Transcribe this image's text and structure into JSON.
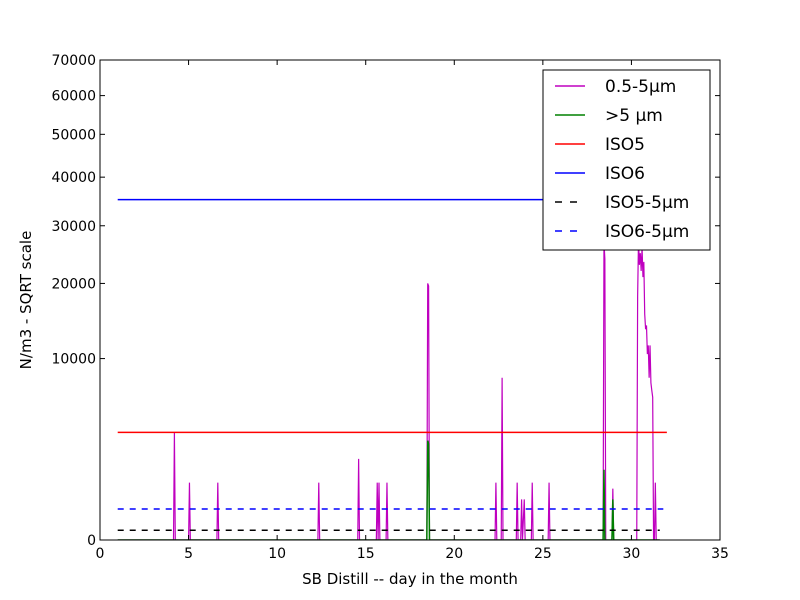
{
  "chart_data": {
    "type": "line",
    "title": "",
    "xlabel": "SB Distill -- day in the month",
    "ylabel": "N/m3 - SQRT scale",
    "xlim": [
      0,
      35
    ],
    "ylim": [
      0,
      70000
    ],
    "y_scale": "sqrt",
    "grid": false,
    "legend_position": "top-right",
    "x_ticks": [
      0,
      5,
      10,
      15,
      20,
      25,
      30,
      35
    ],
    "y_ticks": [
      0,
      10000,
      20000,
      30000,
      40000,
      50000,
      60000,
      70000
    ],
    "series": [
      {
        "name": "0.5-5µm",
        "color": "#bf00bf",
        "style": "solid",
        "points": [
          [
            1.0,
            0
          ],
          [
            4.15,
            0
          ],
          [
            4.2,
            3500
          ],
          [
            4.25,
            0
          ],
          [
            5.0,
            0
          ],
          [
            5.05,
            1000
          ],
          [
            5.1,
            0
          ],
          [
            6.6,
            0
          ],
          [
            6.65,
            1000
          ],
          [
            6.7,
            0
          ],
          [
            12.3,
            0
          ],
          [
            12.35,
            1000
          ],
          [
            12.4,
            0
          ],
          [
            14.55,
            0
          ],
          [
            14.6,
            2000
          ],
          [
            14.65,
            0
          ],
          [
            15.6,
            0
          ],
          [
            15.65,
            1000
          ],
          [
            15.7,
            0
          ],
          [
            15.75,
            1000
          ],
          [
            15.8,
            0
          ],
          [
            16.15,
            0
          ],
          [
            16.2,
            1000
          ],
          [
            16.25,
            0
          ],
          [
            18.45,
            0
          ],
          [
            18.5,
            20000
          ],
          [
            18.55,
            19600
          ],
          [
            18.6,
            0
          ],
          [
            22.3,
            0
          ],
          [
            22.35,
            1000
          ],
          [
            22.4,
            0
          ],
          [
            22.65,
            0
          ],
          [
            22.7,
            8000
          ],
          [
            22.75,
            0
          ],
          [
            23.5,
            0
          ],
          [
            23.55,
            1000
          ],
          [
            23.6,
            0
          ],
          [
            23.75,
            0
          ],
          [
            23.8,
            500
          ],
          [
            23.85,
            0
          ],
          [
            23.95,
            500
          ],
          [
            24.0,
            0
          ],
          [
            24.35,
            0
          ],
          [
            24.4,
            1000
          ],
          [
            24.45,
            0
          ],
          [
            25.3,
            0
          ],
          [
            25.35,
            1000
          ],
          [
            25.4,
            0
          ],
          [
            28.4,
            0
          ],
          [
            28.45,
            27000
          ],
          [
            28.5,
            24000
          ],
          [
            28.55,
            0
          ],
          [
            28.9,
            0
          ],
          [
            28.95,
            800
          ],
          [
            29.0,
            0
          ],
          [
            30.3,
            0
          ],
          [
            30.35,
            18000
          ],
          [
            30.4,
            27500
          ],
          [
            30.45,
            23000
          ],
          [
            30.5,
            25000
          ],
          [
            30.55,
            22000
          ],
          [
            30.6,
            26000
          ],
          [
            30.65,
            21000
          ],
          [
            30.7,
            23500
          ],
          [
            30.75,
            15500
          ],
          [
            30.8,
            13500
          ],
          [
            30.85,
            14000
          ],
          [
            30.9,
            10500
          ],
          [
            30.95,
            11500
          ],
          [
            31.0,
            8000
          ],
          [
            31.05,
            11500
          ],
          [
            31.1,
            7500
          ],
          [
            31.15,
            6800
          ],
          [
            31.2,
            6200
          ],
          [
            31.25,
            0
          ],
          [
            31.3,
            0
          ],
          [
            31.35,
            1000
          ],
          [
            31.4,
            0
          ],
          [
            31.6,
            0
          ]
        ]
      },
      {
        "name": ">5 µm",
        "color": "#008000",
        "style": "solid",
        "points": [
          [
            1.0,
            0
          ],
          [
            18.45,
            0
          ],
          [
            18.5,
            3000
          ],
          [
            18.55,
            2800
          ],
          [
            18.6,
            0
          ],
          [
            28.4,
            0
          ],
          [
            28.45,
            1500
          ],
          [
            28.5,
            0
          ],
          [
            28.9,
            0
          ],
          [
            28.95,
            500
          ],
          [
            29.0,
            0
          ],
          [
            31.6,
            0
          ]
        ]
      },
      {
        "name": "ISO5",
        "color": "#ff0000",
        "style": "solid",
        "points": [
          [
            1.0,
            3520
          ],
          [
            32.0,
            3520
          ]
        ]
      },
      {
        "name": "ISO6",
        "color": "#0000ff",
        "style": "solid",
        "points": [
          [
            1.0,
            35200
          ],
          [
            31.8,
            35200
          ]
        ]
      },
      {
        "name": "ISO5-5µm",
        "color": "#000000",
        "style": "dashed",
        "points": [
          [
            1.0,
            29
          ],
          [
            31.6,
            29
          ]
        ]
      },
      {
        "name": "ISO6-5µm",
        "color": "#0000ff",
        "style": "dashed",
        "points": [
          [
            1.0,
            293
          ],
          [
            31.8,
            293
          ]
        ]
      }
    ]
  }
}
